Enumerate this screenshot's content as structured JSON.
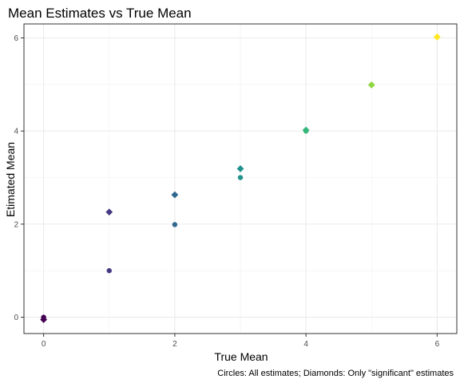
{
  "chart_data": {
    "type": "scatter",
    "title": "Mean Estimates vs True Mean",
    "xlabel": "True Mean",
    "ylabel": "Etimated Mean",
    "caption": "Circles: All estimates; Diamonds: Only \"significant\" estimates",
    "xlim": [
      -0.3,
      6.3
    ],
    "ylim": [
      -0.35,
      6.3
    ],
    "x_ticks": [
      0,
      2,
      4,
      6
    ],
    "y_ticks": [
      0,
      2,
      4,
      6
    ],
    "grid": true,
    "series": [
      {
        "marker": "circle",
        "points": [
          {
            "x": 0,
            "y": 0.0,
            "color": "#440154"
          },
          {
            "x": 1,
            "y": 1.0,
            "color": "#443983"
          },
          {
            "x": 2,
            "y": 1.99,
            "color": "#31688e"
          },
          {
            "x": 3,
            "y": 3.0,
            "color": "#21918c"
          },
          {
            "x": 4,
            "y": 4.0,
            "color": "#35b779"
          },
          {
            "x": 5,
            "y": 4.99,
            "color": "#90d743"
          },
          {
            "x": 6,
            "y": 6.02,
            "color": "#fde725"
          }
        ]
      },
      {
        "marker": "diamond",
        "points": [
          {
            "x": 0,
            "y": -0.05,
            "color": "#440154"
          },
          {
            "x": 1,
            "y": 2.26,
            "color": "#443983"
          },
          {
            "x": 2,
            "y": 2.63,
            "color": "#31688e"
          },
          {
            "x": 3,
            "y": 3.19,
            "color": "#21918c"
          },
          {
            "x": 4,
            "y": 4.02,
            "color": "#35b779"
          },
          {
            "x": 5,
            "y": 4.99,
            "color": "#90d743"
          },
          {
            "x": 6,
            "y": 6.02,
            "color": "#fde725"
          }
        ]
      }
    ]
  }
}
